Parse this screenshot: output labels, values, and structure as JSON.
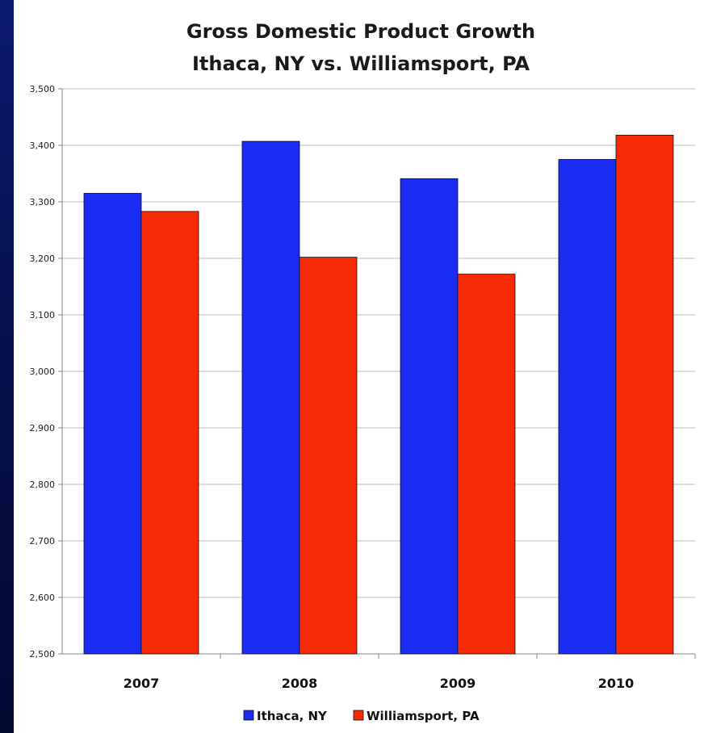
{
  "chart_data": {
    "type": "bar",
    "title": "Gross Domestic Product Growth",
    "subtitle": "Ithaca, NY vs. Williamsport, PA",
    "categories": [
      "2007",
      "2008",
      "2009",
      "2010"
    ],
    "series": [
      {
        "name": "Ithaca, NY",
        "color": "#1a2cf2",
        "values": [
          3315,
          3407,
          3341,
          3375
        ]
      },
      {
        "name": "Williamsport, PA",
        "color": "#f62a04",
        "values": [
          3283,
          3202,
          3172,
          3418
        ]
      }
    ],
    "yticks": [
      "2,500",
      "2,600",
      "2,700",
      "2,800",
      "2,900",
      "3,000",
      "3,100",
      "3,200",
      "3,300",
      "3,400",
      "3,500"
    ],
    "ylim": [
      2500,
      3500
    ],
    "grid": true,
    "legend": "bottom"
  }
}
